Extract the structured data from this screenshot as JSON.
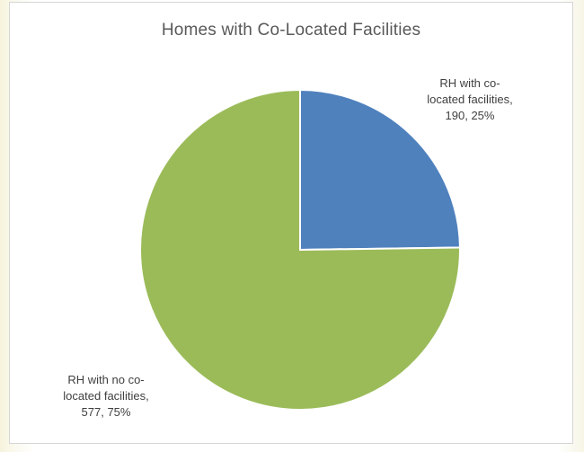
{
  "chart_data": {
    "type": "pie",
    "title": "Homes with Co-Located Facilities",
    "categories": [
      "RH with co-located facilities",
      "RH with no co-located facilities"
    ],
    "values": [
      190,
      577
    ],
    "percentages": [
      25,
      75
    ],
    "data_labels": [
      "RH with co-\nlocated facilities,\n190, 25%",
      "RH with no co-\nlocated facilities,\n577, 75%"
    ],
    "colors": [
      "#4f81bd",
      "#9bbb59"
    ],
    "start_angle_deg": 0,
    "direction": "clockwise",
    "legend": "none"
  }
}
